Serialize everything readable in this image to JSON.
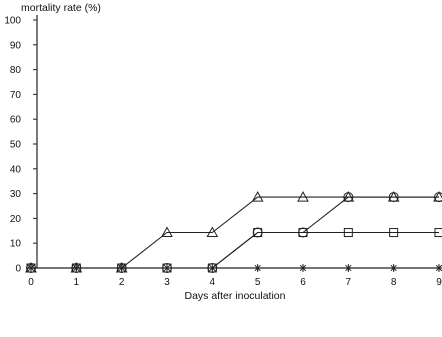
{
  "chart_data": {
    "type": "line",
    "title": "",
    "ylabel": "mortality rate (%)",
    "xlabel": "Days after inoculation",
    "x": [
      0,
      1,
      2,
      3,
      4,
      5,
      6,
      7,
      8,
      9
    ],
    "xlim": [
      0,
      9
    ],
    "ylim": [
      0,
      100
    ],
    "x_ticks": [
      "0",
      "1",
      "2",
      "3",
      "4",
      "5",
      "6",
      "7",
      "8",
      "9"
    ],
    "y_ticks": [
      "0",
      "10",
      "20",
      "30",
      "40",
      "50",
      "60",
      "70",
      "80",
      "90",
      "100"
    ],
    "grid": false,
    "legend": "none",
    "series": [
      {
        "marker": "triangle",
        "values": [
          0,
          0,
          0,
          14.3,
          14.3,
          28.6,
          28.6,
          28.6,
          28.6,
          28.6
        ]
      },
      {
        "marker": "circle",
        "values": [
          0,
          0,
          0,
          0,
          0,
          14.3,
          14.3,
          28.6,
          28.6,
          28.6
        ]
      },
      {
        "marker": "square",
        "values": [
          0,
          0,
          0,
          0,
          0,
          14.3,
          14.3,
          14.3,
          14.3,
          14.3
        ]
      },
      {
        "marker": "asterisk",
        "values": [
          0,
          0,
          0,
          0,
          0,
          0,
          0,
          0,
          0,
          0
        ]
      }
    ],
    "colors": {
      "ink": "#222222",
      "text": "#111111",
      "background": "#ffffff"
    }
  }
}
